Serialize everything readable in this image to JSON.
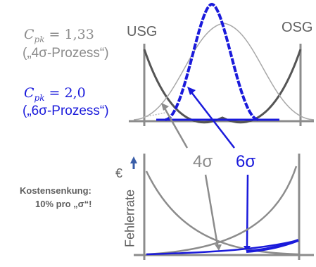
{
  "colors": {
    "blue": "#1a1adb",
    "gray": "#8c8c8c",
    "dark": "#555555",
    "light": "#a8a8a8"
  },
  "left": {
    "cpk4": {
      "symbol": "C",
      "sub": "pk",
      "eq": "= 1,33",
      "process": "(„4σ-Prozess“)"
    },
    "cpk6": {
      "symbol": "C",
      "sub": "pk",
      "eq": "= 2,0",
      "process": "(„6σ-Prozess“)"
    },
    "cost": {
      "line1": "Kostensenkung:",
      "line2": "10% pro „σ“!"
    }
  },
  "top": {
    "usg": "USG",
    "osg": "OSG"
  },
  "middle": {
    "sigma4": "4σ",
    "sigma6": "6σ"
  },
  "bottom": {
    "ylabel": "Fehlerrate",
    "currency": "€"
  }
}
